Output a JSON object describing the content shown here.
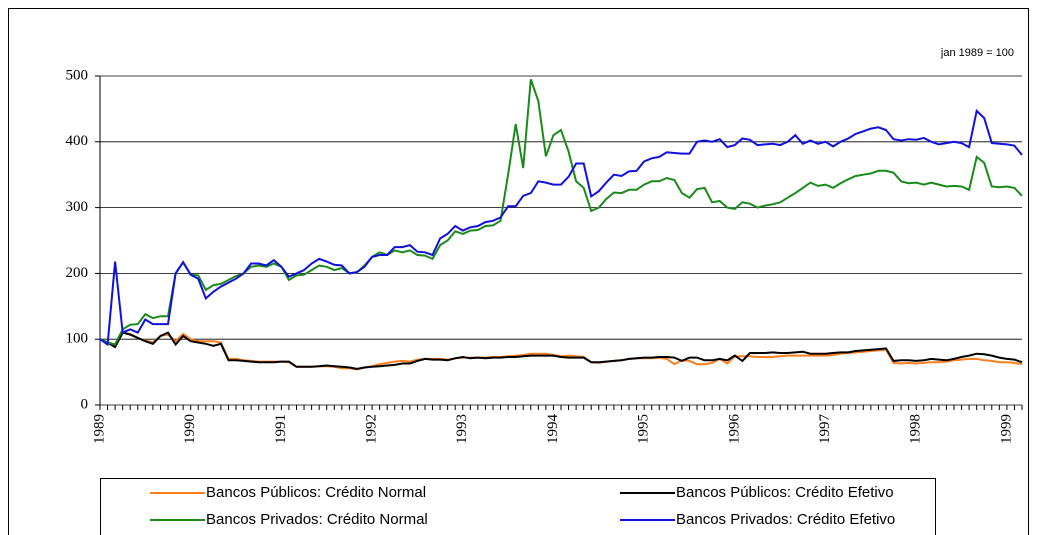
{
  "chart_data": {
    "type": "line",
    "annotation": "jan 1989 = 100",
    "categories": [
      "1989",
      null,
      null,
      null,
      null,
      null,
      null,
      null,
      null,
      null,
      null,
      null,
      "1990",
      null,
      null,
      null,
      null,
      null,
      null,
      null,
      null,
      null,
      null,
      null,
      "1991",
      null,
      null,
      null,
      null,
      null,
      null,
      null,
      null,
      null,
      null,
      null,
      "1992",
      null,
      null,
      null,
      null,
      null,
      null,
      null,
      null,
      null,
      null,
      null,
      "1993",
      null,
      null,
      null,
      null,
      null,
      null,
      null,
      null,
      null,
      null,
      null,
      "1994",
      null,
      null,
      null,
      null,
      null,
      null,
      null,
      null,
      null,
      null,
      null,
      "1995",
      null,
      null,
      null,
      null,
      null,
      null,
      null,
      null,
      null,
      null,
      null,
      "1996",
      null,
      null,
      null,
      null,
      null,
      null,
      null,
      null,
      null,
      null,
      null,
      "1997",
      null,
      null,
      null,
      null,
      null,
      null,
      null,
      null,
      null,
      null,
      null,
      "1998",
      null,
      null,
      null,
      null,
      null,
      null,
      null,
      null,
      null,
      null,
      null,
      "1999",
      null,
      null
    ],
    "series": [
      {
        "name": "Bancos Públicos: Crédito Normal",
        "color": "#ff7f1e",
        "values": [
          100,
          95,
          92,
          110,
          108,
          102,
          98,
          95,
          105,
          107,
          97,
          108,
          100,
          97,
          97,
          97,
          95,
          70,
          70,
          68,
          67,
          66,
          66,
          66,
          66,
          65,
          58,
          58,
          58,
          59,
          59,
          58,
          56,
          56,
          54,
          57,
          59,
          62,
          64,
          66,
          67,
          66,
          69,
          70,
          70,
          70,
          69,
          71,
          72,
          72,
          72,
          72,
          73,
          73,
          74,
          75,
          76,
          78,
          78,
          78,
          76,
          74,
          75,
          74,
          73,
          65,
          64,
          66,
          67,
          68,
          70,
          71,
          71,
          71,
          72,
          70,
          62,
          68,
          67,
          62,
          62,
          64,
          70,
          63,
          74,
          74,
          74,
          73,
          73,
          73,
          74,
          75,
          75,
          75,
          75,
          75,
          75,
          76,
          78,
          79,
          80,
          81,
          82,
          83,
          84,
          64,
          63,
          64,
          63,
          64,
          65,
          65,
          66,
          68,
          69,
          70,
          70,
          68,
          67,
          65,
          65,
          64,
          62
        ]
      },
      {
        "name": "Bancos Públicos: Crédito Efetivo",
        "color": "#000000",
        "values": [
          100,
          95,
          88,
          110,
          107,
          102,
          97,
          93,
          105,
          110,
          92,
          105,
          97,
          95,
          93,
          90,
          93,
          68,
          68,
          67,
          66,
          65,
          65,
          65,
          66,
          66,
          58,
          58,
          58,
          59,
          60,
          59,
          58,
          57,
          55,
          57,
          58,
          59,
          60,
          61,
          63,
          63,
          67,
          70,
          69,
          69,
          68,
          71,
          73,
          71,
          72,
          71,
          72,
          72,
          73,
          73,
          74,
          75,
          75,
          75,
          75,
          73,
          72,
          72,
          72,
          65,
          65,
          66,
          67,
          68,
          70,
          71,
          72,
          72,
          73,
          73,
          72,
          67,
          72,
          72,
          68,
          68,
          70,
          68,
          75,
          67,
          79,
          79,
          79,
          80,
          79,
          79,
          80,
          81,
          78,
          78,
          78,
          79,
          80,
          80,
          82,
          83,
          84,
          85,
          86,
          67,
          68,
          68,
          67,
          68,
          70,
          69,
          68,
          70,
          73,
          75,
          78,
          77,
          75,
          72,
          70,
          69,
          65
        ]
      },
      {
        "name": "Bancos Privados: Crédito Normal",
        "color": "#1a8a1a",
        "values": [
          100,
          95,
          92,
          115,
          122,
          123,
          138,
          132,
          135,
          135,
          200,
          217,
          198,
          197,
          175,
          182,
          184,
          190,
          196,
          200,
          210,
          212,
          210,
          215,
          210,
          190,
          197,
          198,
          205,
          212,
          210,
          205,
          208,
          200,
          202,
          212,
          225,
          232,
          228,
          235,
          232,
          235,
          228,
          227,
          222,
          243,
          250,
          264,
          260,
          265,
          266,
          272,
          273,
          280,
          350,
          427,
          360,
          495,
          462,
          378,
          410,
          418,
          385,
          340,
          330,
          295,
          300,
          313,
          323,
          322,
          327,
          327,
          335,
          340,
          340,
          345,
          342,
          322,
          315,
          328,
          330,
          308,
          310,
          300,
          298,
          308,
          306,
          300,
          303,
          305,
          308,
          315,
          322,
          330,
          338,
          333,
          335,
          330,
          337,
          343,
          348,
          350,
          352,
          356,
          356,
          353,
          340,
          337,
          338,
          335,
          338,
          335,
          332,
          333,
          332,
          327,
          377,
          368,
          332,
          331,
          332,
          330,
          318
        ]
      },
      {
        "name": "Bancos Privados: Crédito Efetivo",
        "color": "#1010e0",
        "values": [
          100,
          92,
          218,
          110,
          115,
          110,
          130,
          123,
          123,
          123,
          200,
          217,
          198,
          192,
          162,
          172,
          180,
          186,
          192,
          200,
          215,
          215,
          212,
          220,
          210,
          195,
          200,
          205,
          215,
          222,
          218,
          213,
          212,
          200,
          202,
          210,
          225,
          228,
          228,
          240,
          240,
          243,
          233,
          232,
          228,
          253,
          260,
          272,
          265,
          270,
          272,
          278,
          280,
          285,
          302,
          302,
          318,
          322,
          340,
          338,
          335,
          335,
          347,
          367,
          367,
          317,
          325,
          338,
          350,
          348,
          355,
          356,
          370,
          375,
          377,
          384,
          383,
          382,
          382,
          400,
          402,
          400,
          404,
          392,
          395,
          405,
          403,
          395,
          396,
          397,
          395,
          400,
          410,
          397,
          402,
          397,
          400,
          393,
          400,
          405,
          412,
          416,
          420,
          422,
          418,
          404,
          402,
          404,
          403,
          406,
          400,
          396,
          398,
          400,
          398,
          392,
          447,
          436,
          398,
          397,
          396,
          394,
          380
        ]
      }
    ],
    "ylim": [
      0,
      500
    ],
    "yticks": [
      0,
      100,
      200,
      300,
      400,
      500
    ],
    "grid": true,
    "legend": "bottom"
  }
}
